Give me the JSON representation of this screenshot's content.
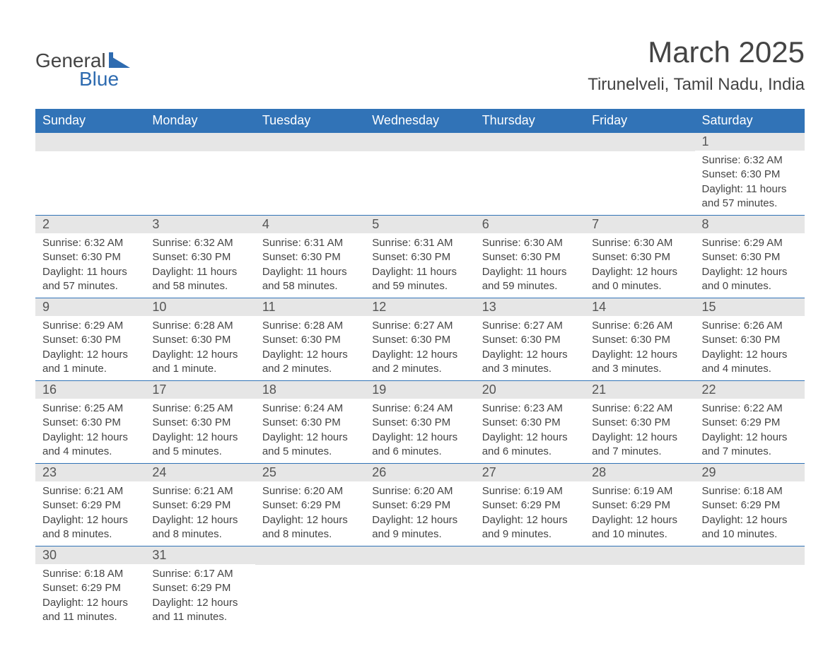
{
  "logo": {
    "general": "General",
    "blue": "Blue",
    "shape_color": "#2e6bb0"
  },
  "header": {
    "month_title": "March 2025",
    "location": "Tirunelveli, Tamil Nadu, India"
  },
  "colors": {
    "header_bg": "#3173b7",
    "header_text": "#ffffff",
    "daynum_bg": "#e6e6e6",
    "row_border": "#3173b7",
    "body_text": "#444444",
    "background": "#ffffff"
  },
  "fonts": {
    "month_title_size": 42,
    "location_size": 24,
    "weekday_size": 18,
    "daynum_size": 18,
    "body_size": 15
  },
  "weekdays": [
    "Sunday",
    "Monday",
    "Tuesday",
    "Wednesday",
    "Thursday",
    "Friday",
    "Saturday"
  ],
  "weeks": [
    [
      {
        "empty": true
      },
      {
        "empty": true
      },
      {
        "empty": true
      },
      {
        "empty": true
      },
      {
        "empty": true
      },
      {
        "empty": true
      },
      {
        "num": "1",
        "sunrise": "Sunrise: 6:32 AM",
        "sunset": "Sunset: 6:30 PM",
        "daylight": "Daylight: 11 hours and 57 minutes."
      }
    ],
    [
      {
        "num": "2",
        "sunrise": "Sunrise: 6:32 AM",
        "sunset": "Sunset: 6:30 PM",
        "daylight": "Daylight: 11 hours and 57 minutes."
      },
      {
        "num": "3",
        "sunrise": "Sunrise: 6:32 AM",
        "sunset": "Sunset: 6:30 PM",
        "daylight": "Daylight: 11 hours and 58 minutes."
      },
      {
        "num": "4",
        "sunrise": "Sunrise: 6:31 AM",
        "sunset": "Sunset: 6:30 PM",
        "daylight": "Daylight: 11 hours and 58 minutes."
      },
      {
        "num": "5",
        "sunrise": "Sunrise: 6:31 AM",
        "sunset": "Sunset: 6:30 PM",
        "daylight": "Daylight: 11 hours and 59 minutes."
      },
      {
        "num": "6",
        "sunrise": "Sunrise: 6:30 AM",
        "sunset": "Sunset: 6:30 PM",
        "daylight": "Daylight: 11 hours and 59 minutes."
      },
      {
        "num": "7",
        "sunrise": "Sunrise: 6:30 AM",
        "sunset": "Sunset: 6:30 PM",
        "daylight": "Daylight: 12 hours and 0 minutes."
      },
      {
        "num": "8",
        "sunrise": "Sunrise: 6:29 AM",
        "sunset": "Sunset: 6:30 PM",
        "daylight": "Daylight: 12 hours and 0 minutes."
      }
    ],
    [
      {
        "num": "9",
        "sunrise": "Sunrise: 6:29 AM",
        "sunset": "Sunset: 6:30 PM",
        "daylight": "Daylight: 12 hours and 1 minute."
      },
      {
        "num": "10",
        "sunrise": "Sunrise: 6:28 AM",
        "sunset": "Sunset: 6:30 PM",
        "daylight": "Daylight: 12 hours and 1 minute."
      },
      {
        "num": "11",
        "sunrise": "Sunrise: 6:28 AM",
        "sunset": "Sunset: 6:30 PM",
        "daylight": "Daylight: 12 hours and 2 minutes."
      },
      {
        "num": "12",
        "sunrise": "Sunrise: 6:27 AM",
        "sunset": "Sunset: 6:30 PM",
        "daylight": "Daylight: 12 hours and 2 minutes."
      },
      {
        "num": "13",
        "sunrise": "Sunrise: 6:27 AM",
        "sunset": "Sunset: 6:30 PM",
        "daylight": "Daylight: 12 hours and 3 minutes."
      },
      {
        "num": "14",
        "sunrise": "Sunrise: 6:26 AM",
        "sunset": "Sunset: 6:30 PM",
        "daylight": "Daylight: 12 hours and 3 minutes."
      },
      {
        "num": "15",
        "sunrise": "Sunrise: 6:26 AM",
        "sunset": "Sunset: 6:30 PM",
        "daylight": "Daylight: 12 hours and 4 minutes."
      }
    ],
    [
      {
        "num": "16",
        "sunrise": "Sunrise: 6:25 AM",
        "sunset": "Sunset: 6:30 PM",
        "daylight": "Daylight: 12 hours and 4 minutes."
      },
      {
        "num": "17",
        "sunrise": "Sunrise: 6:25 AM",
        "sunset": "Sunset: 6:30 PM",
        "daylight": "Daylight: 12 hours and 5 minutes."
      },
      {
        "num": "18",
        "sunrise": "Sunrise: 6:24 AM",
        "sunset": "Sunset: 6:30 PM",
        "daylight": "Daylight: 12 hours and 5 minutes."
      },
      {
        "num": "19",
        "sunrise": "Sunrise: 6:24 AM",
        "sunset": "Sunset: 6:30 PM",
        "daylight": "Daylight: 12 hours and 6 minutes."
      },
      {
        "num": "20",
        "sunrise": "Sunrise: 6:23 AM",
        "sunset": "Sunset: 6:30 PM",
        "daylight": "Daylight: 12 hours and 6 minutes."
      },
      {
        "num": "21",
        "sunrise": "Sunrise: 6:22 AM",
        "sunset": "Sunset: 6:30 PM",
        "daylight": "Daylight: 12 hours and 7 minutes."
      },
      {
        "num": "22",
        "sunrise": "Sunrise: 6:22 AM",
        "sunset": "Sunset: 6:29 PM",
        "daylight": "Daylight: 12 hours and 7 minutes."
      }
    ],
    [
      {
        "num": "23",
        "sunrise": "Sunrise: 6:21 AM",
        "sunset": "Sunset: 6:29 PM",
        "daylight": "Daylight: 12 hours and 8 minutes."
      },
      {
        "num": "24",
        "sunrise": "Sunrise: 6:21 AM",
        "sunset": "Sunset: 6:29 PM",
        "daylight": "Daylight: 12 hours and 8 minutes."
      },
      {
        "num": "25",
        "sunrise": "Sunrise: 6:20 AM",
        "sunset": "Sunset: 6:29 PM",
        "daylight": "Daylight: 12 hours and 8 minutes."
      },
      {
        "num": "26",
        "sunrise": "Sunrise: 6:20 AM",
        "sunset": "Sunset: 6:29 PM",
        "daylight": "Daylight: 12 hours and 9 minutes."
      },
      {
        "num": "27",
        "sunrise": "Sunrise: 6:19 AM",
        "sunset": "Sunset: 6:29 PM",
        "daylight": "Daylight: 12 hours and 9 minutes."
      },
      {
        "num": "28",
        "sunrise": "Sunrise: 6:19 AM",
        "sunset": "Sunset: 6:29 PM",
        "daylight": "Daylight: 12 hours and 10 minutes."
      },
      {
        "num": "29",
        "sunrise": "Sunrise: 6:18 AM",
        "sunset": "Sunset: 6:29 PM",
        "daylight": "Daylight: 12 hours and 10 minutes."
      }
    ],
    [
      {
        "num": "30",
        "sunrise": "Sunrise: 6:18 AM",
        "sunset": "Sunset: 6:29 PM",
        "daylight": "Daylight: 12 hours and 11 minutes."
      },
      {
        "num": "31",
        "sunrise": "Sunrise: 6:17 AM",
        "sunset": "Sunset: 6:29 PM",
        "daylight": "Daylight: 12 hours and 11 minutes."
      },
      {
        "empty": true
      },
      {
        "empty": true
      },
      {
        "empty": true
      },
      {
        "empty": true
      },
      {
        "empty": true
      }
    ]
  ]
}
